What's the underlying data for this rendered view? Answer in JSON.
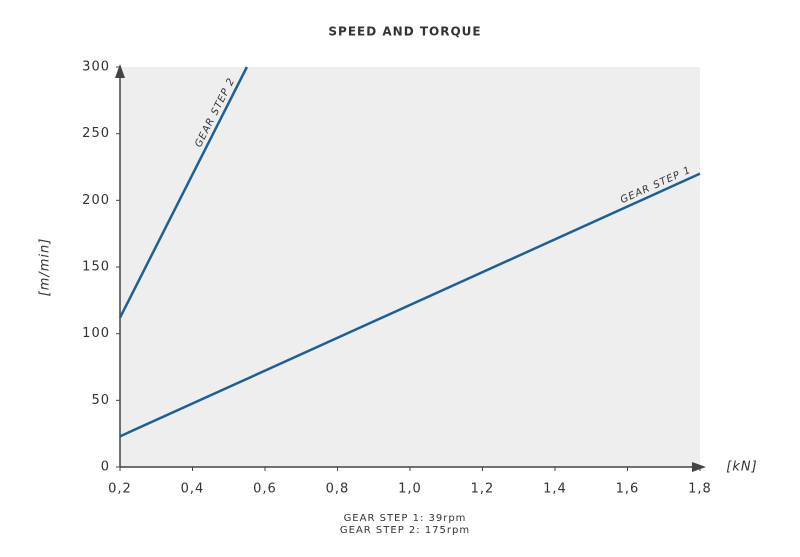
{
  "chart_data": {
    "type": "line",
    "title": "SPEED AND TORQUE",
    "x_label": "[kN]",
    "y_label": "[m/min]",
    "series": [
      {
        "name": "GEAR STEP 1",
        "color": "#1f5f96",
        "x": [
          0.2,
          1.8
        ],
        "values": [
          23,
          220
        ]
      },
      {
        "name": "GEAR STEP 2",
        "color": "#1f5f96",
        "x": [
          0.2,
          0.55
        ],
        "values": [
          112,
          300
        ]
      }
    ],
    "xlim": [
      0.2,
      1.8
    ],
    "xticks": [
      {
        "value": 0.2,
        "label": "0,2"
      },
      {
        "value": 0.4,
        "label": "0,4"
      },
      {
        "value": 0.6,
        "label": "0,6"
      },
      {
        "value": 0.8,
        "label": "0,8"
      },
      {
        "value": 1.0,
        "label": "1,0"
      },
      {
        "value": 1.2,
        "label": "1,2"
      },
      {
        "value": 1.4,
        "label": "1,4"
      },
      {
        "value": 1.6,
        "label": "1,6"
      },
      {
        "value": 1.8,
        "label": "1,8"
      }
    ],
    "ylim": [
      0,
      300
    ],
    "yticks": [
      0,
      50,
      100,
      150,
      200,
      250,
      300
    ],
    "notes": [
      "GEAR STEP 1: 39rpm",
      "GEAR STEP 2: 175rpm"
    ]
  }
}
